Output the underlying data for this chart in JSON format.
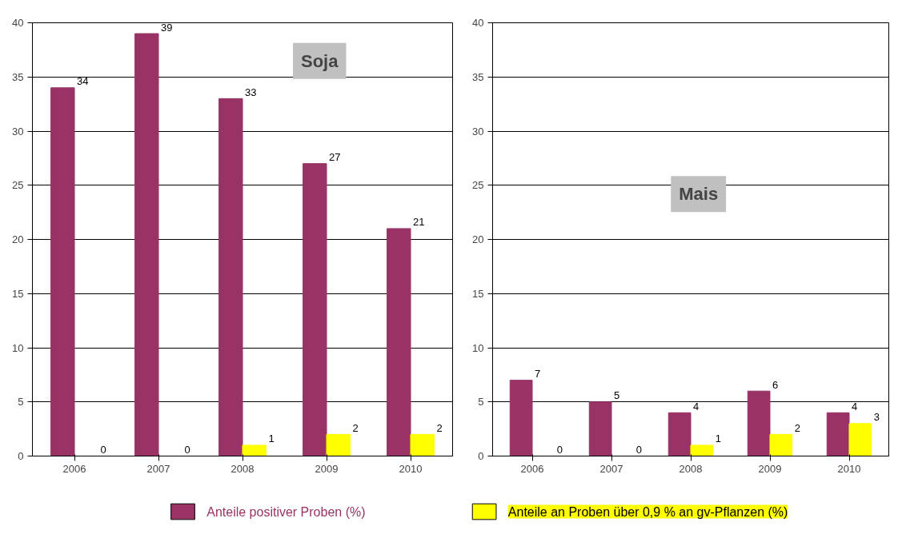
{
  "chart_data": [
    {
      "type": "bar",
      "title": "Soja",
      "categories": [
        "2006",
        "2007",
        "2008",
        "2009",
        "2010"
      ],
      "series": [
        {
          "name": "Anteile positiver Proben (%)",
          "color": "#993366",
          "values": [
            34,
            39,
            33,
            27,
            21
          ]
        },
        {
          "name": "Anteile an Proben über 0,9 % an gv-Pflanzen (%)",
          "color": "#ffff00",
          "values": [
            0,
            0,
            1,
            2,
            2
          ]
        }
      ],
      "ylim": [
        0,
        40
      ],
      "yticks": [
        0,
        5,
        10,
        15,
        20,
        25,
        30,
        35,
        40
      ],
      "grid": "y",
      "data_labels": true,
      "legend": "bottom"
    },
    {
      "type": "bar",
      "title": "Mais",
      "categories": [
        "2006",
        "2007",
        "2008",
        "2009",
        "2010"
      ],
      "series": [
        {
          "color": "#993366",
          "values": [
            7,
            5,
            4,
            6,
            4
          ]
        },
        {
          "color": "#ffff00",
          "values": [
            0,
            0,
            1,
            2,
            3
          ]
        }
      ],
      "ylim": [
        0,
        40
      ],
      "yticks": [
        0,
        5,
        10,
        15,
        20,
        25,
        30,
        35,
        40
      ],
      "grid": "y",
      "data_labels": true
    }
  ]
}
